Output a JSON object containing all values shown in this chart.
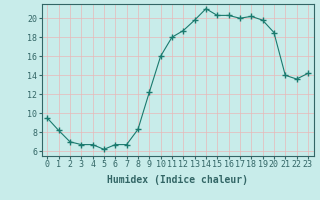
{
  "x": [
    0,
    1,
    2,
    3,
    4,
    5,
    6,
    7,
    8,
    9,
    10,
    11,
    12,
    13,
    14,
    15,
    16,
    17,
    18,
    19,
    20,
    21,
    22,
    23
  ],
  "y": [
    9.5,
    8.2,
    7.0,
    6.7,
    6.7,
    6.2,
    6.7,
    6.7,
    8.3,
    12.2,
    16.0,
    18.0,
    18.7,
    19.8,
    21.0,
    20.3,
    20.3,
    20.0,
    20.2,
    19.8,
    18.5,
    14.0,
    13.6,
    14.2
  ],
  "line_color": "#1a7a6e",
  "marker": "+",
  "marker_size": 4,
  "bg_color": "#c8ecea",
  "grid_color": "#e8b8b8",
  "xlabel": "Humidex (Indice chaleur)",
  "xlabel_fontsize": 7,
  "ylim": [
    5.5,
    21.5
  ],
  "xlim": [
    -0.5,
    23.5
  ],
  "yticks": [
    6,
    8,
    10,
    12,
    14,
    16,
    18,
    20
  ],
  "xticks": [
    0,
    1,
    2,
    3,
    4,
    5,
    6,
    7,
    8,
    9,
    10,
    11,
    12,
    13,
    14,
    15,
    16,
    17,
    18,
    19,
    20,
    21,
    22,
    23
  ],
  "tick_fontsize": 6,
  "spine_color": "#336666"
}
